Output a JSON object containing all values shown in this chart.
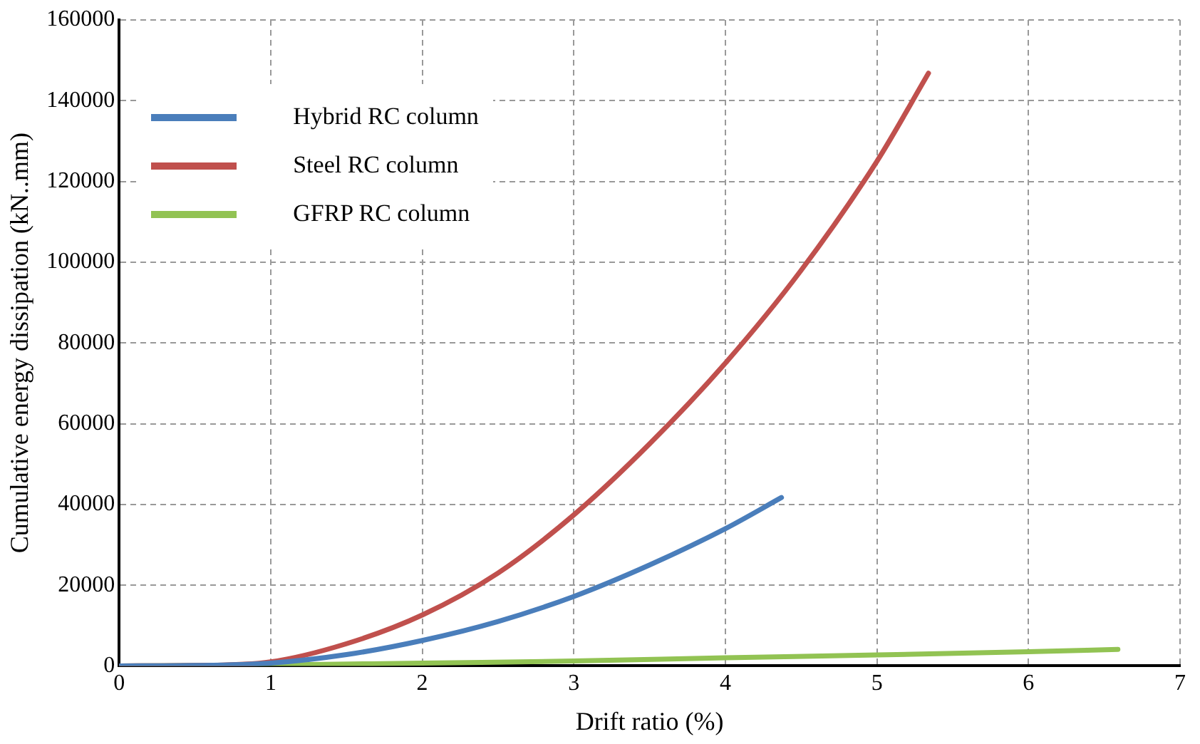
{
  "chart_data": {
    "type": "line",
    "xlabel": "Drift ratio (%)",
    "ylabel": "Cumulative energy dissipation (kN..mm)",
    "xlim": [
      0,
      7
    ],
    "xticks": [
      0,
      1,
      2,
      3,
      4,
      5,
      6,
      7
    ],
    "ylim": [
      0,
      160000
    ],
    "yticks": [
      0,
      20000,
      40000,
      60000,
      80000,
      100000,
      120000,
      140000,
      160000
    ],
    "grid": true,
    "legend": "top left",
    "marker": "none",
    "line_style": "solid",
    "series": [
      {
        "name": "Hybrid RC column",
        "color": "#4a7ebb",
        "x": [
          0,
          0.5,
          1,
          1.5,
          2,
          2.5,
          3,
          3.5,
          4,
          4.37
        ],
        "values": [
          0,
          100,
          700,
          2800,
          6300,
          11000,
          17200,
          25000,
          34000,
          41700
        ]
      },
      {
        "name": "Steel RC column",
        "color": "#c0504d",
        "x": [
          0,
          0.5,
          1,
          1.5,
          2,
          2.5,
          3,
          3.5,
          4,
          4.5,
          5,
          5.34
        ],
        "values": [
          0,
          100,
          1000,
          5500,
          12600,
          23000,
          37400,
          55000,
          75000,
          98000,
          125000,
          146800
        ]
      },
      {
        "name": "GFRP RC column",
        "color": "#92c353",
        "x": [
          0,
          1,
          2,
          3,
          4,
          5,
          6,
          6.59
        ],
        "values": [
          0,
          200,
          700,
          1200,
          2000,
          2700,
          3500,
          4100
        ]
      }
    ]
  }
}
